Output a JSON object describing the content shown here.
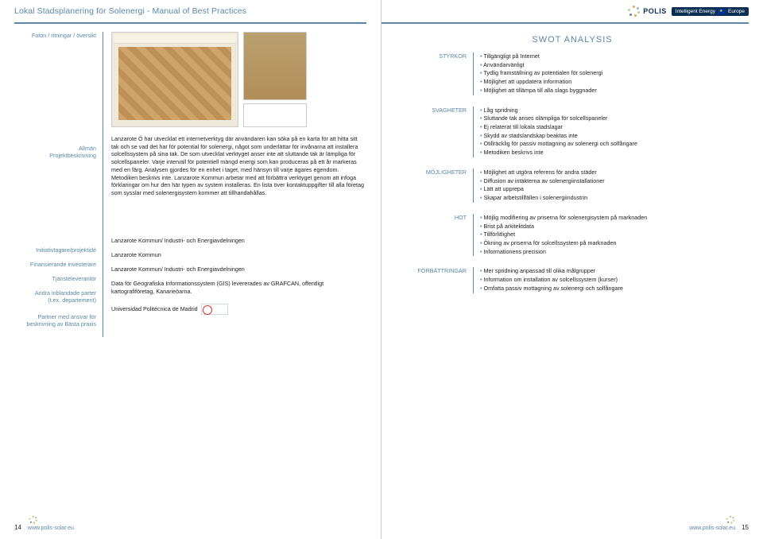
{
  "header": {
    "title": "Lokal Stadsplanering för Solenergi - Manual of Best Practices",
    "polis": "POLIS",
    "ie_badge": "Intelligent Energy",
    "ie_badge2": "Europe"
  },
  "left": {
    "photo_label": "Foton / ritningar / översikt",
    "rows": [
      {
        "label_lines": [
          "Allmän",
          "Projektbeskrivning"
        ],
        "body": "Lanzarote Ö har utvecklat ett internetverktyg där användaren kan söka på en karta för att hitta sitt tak och se vad det har för potential för solenergi, något som underlättar för invånarna att installera solcellssystem på sina tak. De som utvecklat verktyget anser inte att sluttande tak är lämpliga för solcellspaneler. Varje intervall för potentiell mängd energi som kan produceras på ett år markeras med en färg.\nAnalysen gjordes för en enhet i taget, med hänsyn till varje ägares egendom. Metodiken beskrivs inte.\nLanzarote Kommun arbetar med att förbättra verktyget genom att infoga förklaringar om hur den här typen av system installeras. En lista över kontaktuppgifter till alla företag som sysslar med solenergisystem kommer att tillhandahållas."
      },
      {
        "label_lines": [
          "Initiativtagare/projektidé"
        ],
        "body": "Lanzarote Kommun/ Industri- och Energiavdelningen"
      },
      {
        "label_lines": [
          "Finansierande investerare"
        ],
        "body": "Lanzarote Kommun"
      },
      {
        "label_lines": [
          "Tjänsteleverantör"
        ],
        "body": "Lanzarote Kommun/ Industri- och Energiavdelningen"
      },
      {
        "label_lines": [
          "Andra inblandade parter",
          "(t.ex. departement)"
        ],
        "body": "Data för Geografiska Informationssystem (GIS) levererades av GRAFCAN, offentligt kartografiföretag, Kanarieöarna."
      },
      {
        "label_lines": [
          "Partner med ansvar för",
          "beskrivning av Bästa praxis"
        ],
        "body": "Universidad Politécnica de Madrid",
        "has_logo": true
      }
    ]
  },
  "right": {
    "swot_title": "SWOT ANALYSIS",
    "sections": [
      {
        "label": "STYRKOR",
        "items": [
          "Tillgängligt på Internet",
          "Användarvänligt",
          "Tydlig framställning av potentialen för solenergi",
          "Möjlighet att uppdatera information",
          "Möjlighet att tillämpa till alla slags byggnader"
        ]
      },
      {
        "label": "SVAGHETER",
        "items": [
          "Låg spridning",
          "Sluttande tak anses olämpliga för solcellspaneler",
          "Ej relaterat till lokala stadslagar",
          "Skydd av stadslandskap beaktas inte",
          "Otillräcklig för passiv mottagning av solenergi och solfångare",
          "Metodiken beskrivs inte"
        ]
      },
      {
        "label": "MÖJLIGHETER",
        "items": [
          "Möjlighet att utgöra referens för andra städer",
          "Diffusion av intäkterna av solenergiinstallationer",
          "Lätt att upprepa",
          "Skapar arbetstillfällen i solenergiindustrin"
        ]
      },
      {
        "label": "HOT",
        "items": [
          "Möjlig modifiering av priserna för solenergisystem på marknaden",
          "Brist på arkitektdata",
          "Tillförlitlighet",
          "Ökning av priserna för solcellssystem på marknaden",
          "Informationens precision"
        ]
      },
      {
        "label": "FÖRBÄTTRINGAR",
        "items": [
          "Mer spridning anpassad till olika målgrupper",
          "Information om installation av solcellssystem (kurser)",
          "Omfatta passiv mottagning av solenergi och solfångare"
        ]
      }
    ]
  },
  "footer": {
    "url": "www.polis-solar.eu",
    "left_num": "14",
    "right_num": "15"
  }
}
